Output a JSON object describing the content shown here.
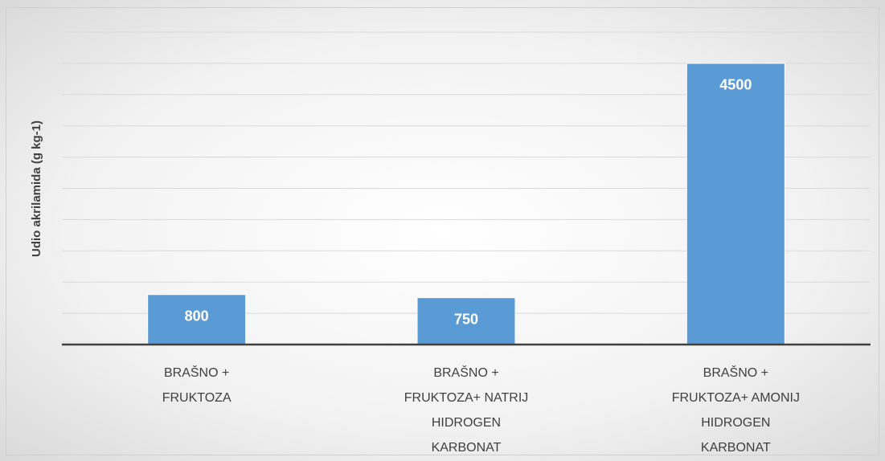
{
  "chart_data": {
    "type": "bar",
    "y_label": "Udio akrilamida (g kg-1)",
    "categories": [
      "BRAŠNO + FRUKTOZA",
      "BRAŠNO + FRUKTOZA+ NATRIJ HIDROGEN KARBONAT",
      "BRAŠNO + FRUKTOZA+ AMONIJ HIDROGEN KARBONAT"
    ],
    "values": [
      800,
      750,
      4500
    ],
    "color": "#5b9bd5",
    "ylim": [
      0,
      5000
    ],
    "yticks": [
      0,
      500,
      1000,
      1500,
      2000,
      2500,
      3000,
      3500,
      4000,
      4500,
      5000
    ],
    "grid": true,
    "tick_labels": false,
    "data_labels": true
  }
}
